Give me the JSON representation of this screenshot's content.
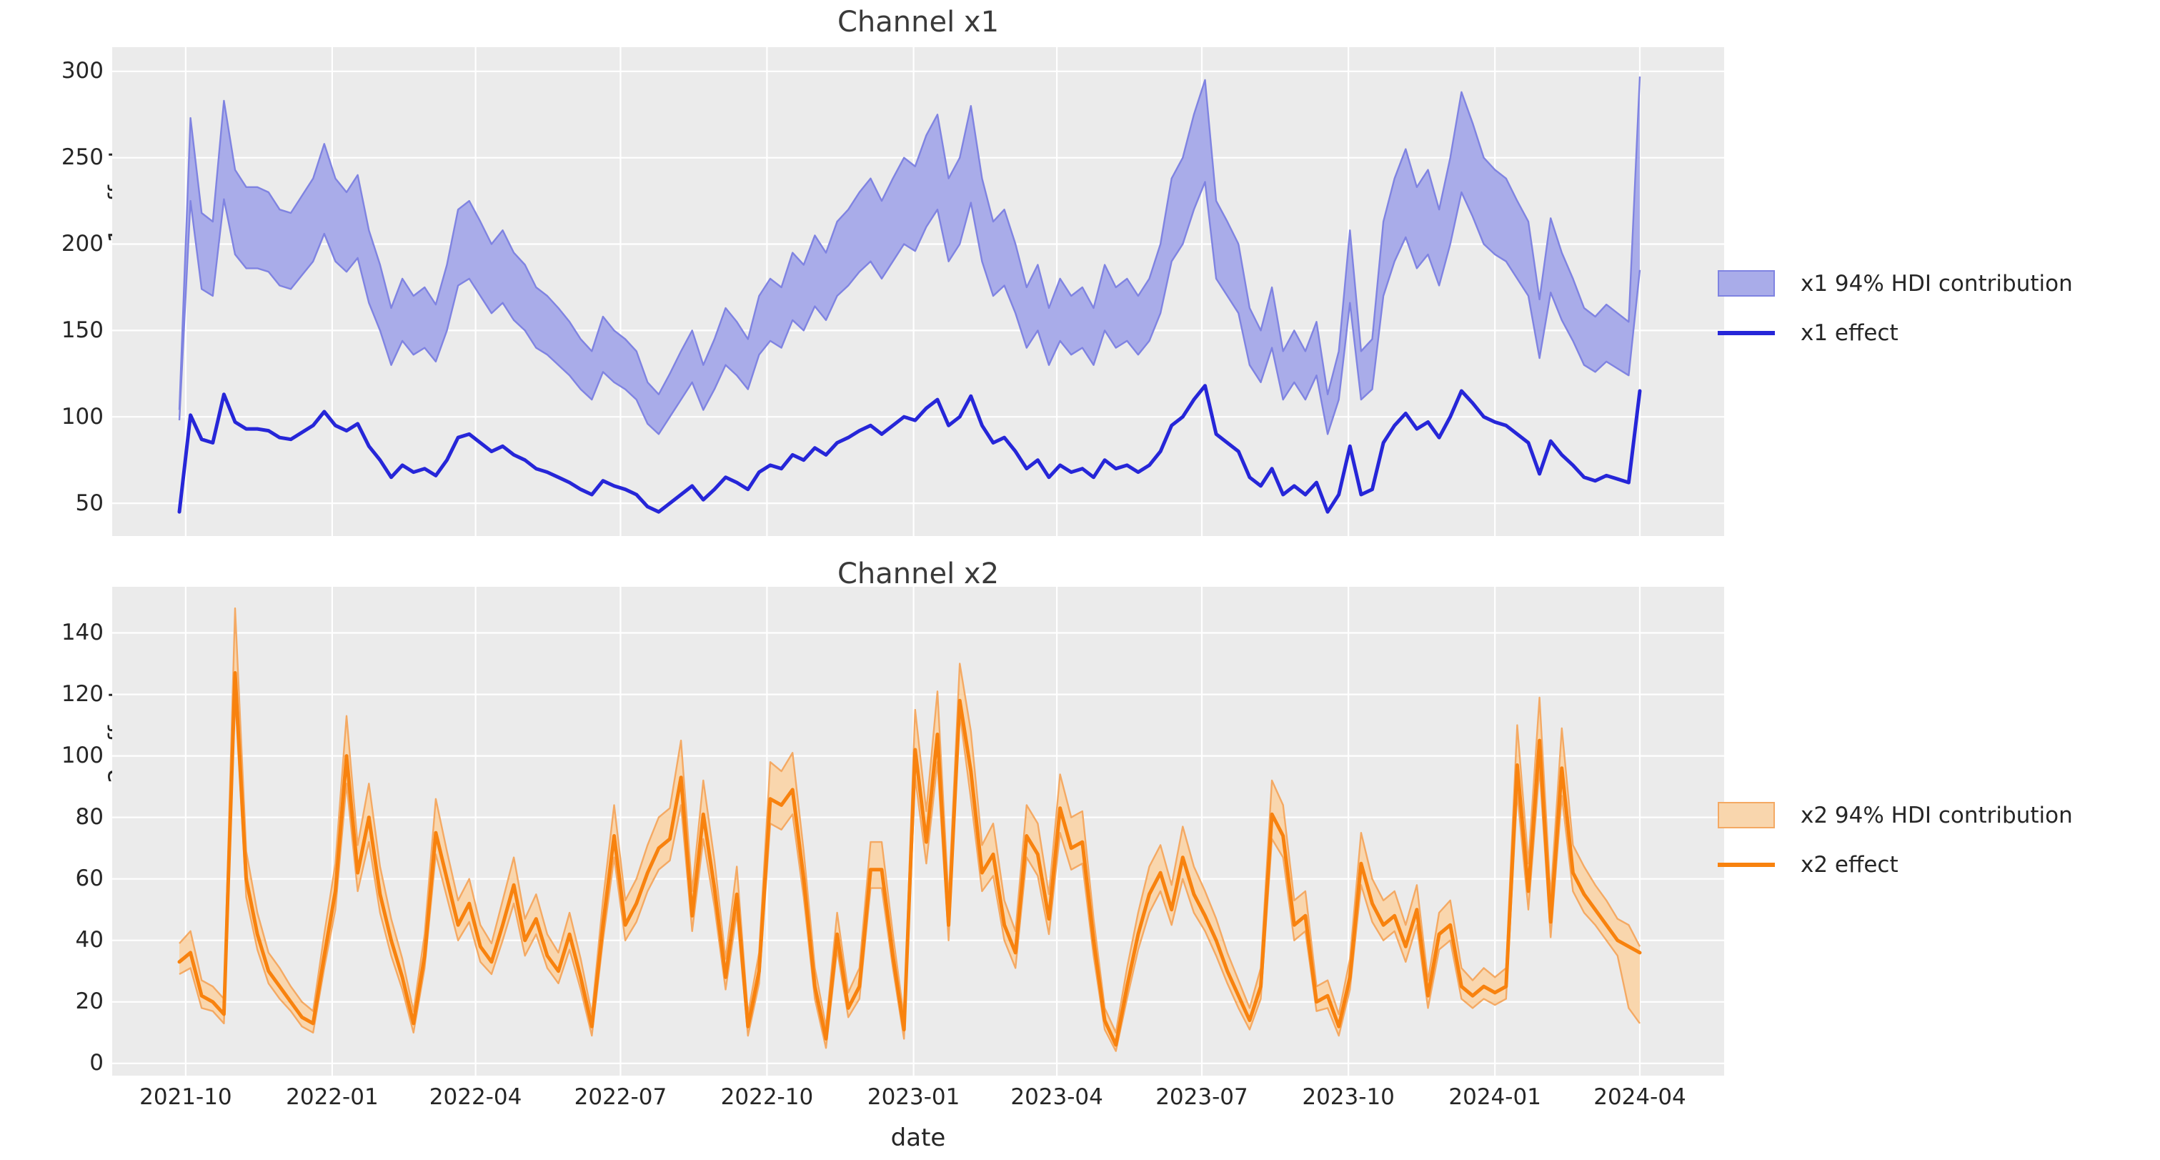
{
  "x_axis": {
    "label": "date",
    "start_date": "2021-09-27",
    "step_days": 7,
    "n_points": 132,
    "ticks": [
      "2021-10",
      "2022-01",
      "2022-04",
      "2022-07",
      "2022-10",
      "2023-01",
      "2023-04",
      "2023-07",
      "2023-10",
      "2024-01",
      "2024-04"
    ],
    "tick_weeks": [
      0.57,
      13.71,
      26.57,
      39.57,
      52.71,
      65.86,
      78.71,
      91.71,
      104.86,
      118.0,
      131.0
    ]
  },
  "chart_data": [
    {
      "type": "area",
      "title": "Channel x1",
      "ylabel": "x1_effect",
      "xlabel": "",
      "ylim": [
        31,
        314
      ],
      "yticks": [
        50,
        100,
        150,
        200,
        250,
        300
      ],
      "grid": true,
      "plot_bg": "#ebebeb",
      "grid_color": "#ffffff",
      "legend_position": "right",
      "legend": [
        {
          "label": "x1 94% HDI contribution",
          "swatch": "patch",
          "fill": "#a9ace9",
          "edge": "#7f83e1"
        },
        {
          "label": "x1 effect",
          "swatch": "line",
          "color": "#2626d8"
        }
      ],
      "series": [
        {
          "name": "x1 94% HDI contribution",
          "kind": "band",
          "fill": "#a9ace9",
          "edge": "#7f83e1",
          "lower": [
            98,
            225,
            174,
            170,
            226,
            194,
            186,
            186,
            184,
            176,
            174,
            182,
            190,
            206,
            190,
            184,
            192,
            166,
            150,
            130,
            144,
            136,
            140,
            132,
            150,
            176,
            180,
            170,
            160,
            166,
            156,
            150,
            140,
            136,
            130,
            124,
            116,
            110,
            126,
            120,
            116,
            110,
            96,
            90,
            100,
            110,
            120,
            104,
            116,
            130,
            124,
            116,
            136,
            144,
            140,
            156,
            150,
            164,
            156,
            170,
            176,
            184,
            190,
            180,
            190,
            200,
            196,
            210,
            220,
            190,
            200,
            224,
            190,
            170,
            176,
            160,
            140,
            150,
            130,
            144,
            136,
            140,
            130,
            150,
            140,
            144,
            136,
            144,
            160,
            190,
            200,
            220,
            236,
            180,
            170,
            160,
            130,
            120,
            140,
            110,
            120,
            110,
            124,
            90,
            110,
            166,
            110,
            116,
            170,
            190,
            204,
            186,
            194,
            176,
            200,
            230,
            216,
            200,
            194,
            190,
            180,
            170,
            134,
            172,
            156,
            144,
            130,
            126,
            132,
            128,
            124,
            185
          ],
          "upper": [
            104,
            273,
            218,
            213,
            283,
            243,
            233,
            233,
            230,
            220,
            218,
            228,
            238,
            258,
            238,
            230,
            240,
            208,
            188,
            163,
            180,
            170,
            175,
            165,
            188,
            220,
            225,
            213,
            200,
            208,
            195,
            188,
            175,
            170,
            163,
            155,
            145,
            138,
            158,
            150,
            145,
            138,
            120,
            113,
            125,
            138,
            150,
            130,
            145,
            163,
            155,
            145,
            170,
            180,
            175,
            195,
            188,
            205,
            195,
            213,
            220,
            230,
            238,
            225,
            238,
            250,
            245,
            263,
            275,
            238,
            250,
            280,
            238,
            213,
            220,
            200,
            175,
            188,
            163,
            180,
            170,
            175,
            163,
            188,
            175,
            180,
            170,
            180,
            200,
            238,
            250,
            275,
            295,
            225,
            213,
            200,
            163,
            150,
            175,
            138,
            150,
            138,
            155,
            113,
            138,
            208,
            138,
            145,
            213,
            238,
            255,
            233,
            243,
            220,
            250,
            288,
            270,
            250,
            243,
            238,
            225,
            213,
            168,
            215,
            195,
            180,
            163,
            158,
            165,
            160,
            155,
            297
          ]
        },
        {
          "name": "x1 effect",
          "kind": "line",
          "color": "#2626d8",
          "values": [
            45,
            101,
            87,
            85,
            113,
            97,
            93,
            93,
            92,
            88,
            87,
            91,
            95,
            103,
            95,
            92,
            96,
            83,
            75,
            65,
            72,
            68,
            70,
            66,
            75,
            88,
            90,
            85,
            80,
            83,
            78,
            75,
            70,
            68,
            65,
            62,
            58,
            55,
            63,
            60,
            58,
            55,
            48,
            45,
            50,
            55,
            60,
            52,
            58,
            65,
            62,
            58,
            68,
            72,
            70,
            78,
            75,
            82,
            78,
            85,
            88,
            92,
            95,
            90,
            95,
            100,
            98,
            105,
            110,
            95,
            100,
            112,
            95,
            85,
            88,
            80,
            70,
            75,
            65,
            72,
            68,
            70,
            65,
            75,
            70,
            72,
            68,
            72,
            80,
            95,
            100,
            110,
            118,
            90,
            85,
            80,
            65,
            60,
            70,
            55,
            60,
            55,
            62,
            45,
            55,
            83,
            55,
            58,
            85,
            95,
            102,
            93,
            97,
            88,
            100,
            115,
            108,
            100,
            97,
            95,
            90,
            85,
            67,
            86,
            78,
            72,
            65,
            63,
            66,
            64,
            62,
            115
          ]
        }
      ]
    },
    {
      "type": "area",
      "title": "Channel x2",
      "ylabel": "x2_effect",
      "xlabel": "date",
      "ylim": [
        -4,
        155
      ],
      "yticks": [
        0,
        20,
        40,
        60,
        80,
        100,
        120,
        140
      ],
      "grid": true,
      "plot_bg": "#ebebeb",
      "grid_color": "#ffffff",
      "legend_position": "right",
      "legend": [
        {
          "label": "x2 94% HDI contribution",
          "swatch": "patch",
          "fill": "#f9d6ad",
          "edge": "#f4a963"
        },
        {
          "label": "x2 effect",
          "swatch": "line",
          "color": "#f8820e"
        }
      ],
      "series": [
        {
          "name": "x2 94% HDI contribution",
          "kind": "band",
          "fill": "#f9d6ad",
          "edge": "#f4a963",
          "lower": [
            29,
            31,
            18,
            17,
            13,
            120,
            54,
            37,
            26,
            21,
            17,
            12,
            10,
            31,
            50,
            91,
            56,
            72,
            49,
            35,
            24,
            10,
            31,
            68,
            54,
            40,
            46,
            33,
            29,
            40,
            52,
            35,
            42,
            31,
            26,
            37,
            24,
            9,
            40,
            67,
            40,
            46,
            56,
            63,
            66,
            84,
            43,
            73,
            51,
            24,
            49,
            9,
            26,
            78,
            76,
            81,
            54,
            21,
            5,
            37,
            15,
            21,
            57,
            57,
            31,
            8,
            93,
            65,
            98,
            40,
            114,
            86,
            56,
            61,
            40,
            31,
            67,
            61,
            42,
            75,
            63,
            65,
            35,
            11,
            4,
            21,
            37,
            49,
            56,
            45,
            60,
            49,
            43,
            35,
            26,
            18,
            11,
            21,
            73,
            67,
            40,
            43,
            17,
            18,
            9,
            24,
            58,
            46,
            40,
            43,
            33,
            45,
            18,
            37,
            40,
            21,
            18,
            21,
            19,
            21,
            88,
            50,
            96,
            41,
            87,
            56,
            49,
            45,
            40,
            35,
            18,
            13
          ],
          "upper": [
            39,
            43,
            27,
            25,
            21,
            148,
            69,
            49,
            36,
            31,
            25,
            20,
            17,
            42,
            65,
            113,
            71,
            91,
            64,
            47,
            34,
            17,
            42,
            86,
            69,
            53,
            60,
            45,
            39,
            53,
            67,
            47,
            55,
            42,
            36,
            49,
            34,
            16,
            53,
            84,
            53,
            60,
            71,
            80,
            83,
            105,
            56,
            92,
            66,
            34,
            64,
            16,
            36,
            98,
            95,
            101,
            69,
            31,
            12,
            49,
            23,
            31,
            72,
            72,
            42,
            15,
            115,
            82,
            121,
            53,
            130,
            108,
            71,
            78,
            53,
            43,
            84,
            78,
            55,
            94,
            80,
            82,
            47,
            18,
            10,
            31,
            49,
            64,
            71,
            58,
            77,
            64,
            56,
            47,
            36,
            27,
            18,
            31,
            92,
            84,
            53,
            56,
            25,
            27,
            16,
            34,
            75,
            60,
            53,
            56,
            45,
            58,
            27,
            49,
            53,
            31,
            27,
            31,
            28,
            31,
            110,
            65,
            119,
            54,
            109,
            71,
            64,
            58,
            53,
            47,
            45,
            38
          ]
        },
        {
          "name": "x2 effect",
          "kind": "line",
          "color": "#f8820e",
          "values": [
            33,
            36,
            22,
            20,
            16,
            127,
            60,
            42,
            30,
            25,
            20,
            15,
            13,
            35,
            56,
            100,
            62,
            80,
            55,
            40,
            28,
            13,
            35,
            75,
            60,
            45,
            52,
            38,
            33,
            45,
            58,
            40,
            47,
            35,
            30,
            42,
            28,
            12,
            45,
            74,
            45,
            52,
            62,
            70,
            73,
            93,
            48,
            81,
            57,
            28,
            55,
            12,
            30,
            86,
            84,
            89,
            60,
            25,
            8,
            42,
            18,
            25,
            63,
            63,
            35,
            11,
            102,
            72,
            107,
            45,
            118,
            95,
            62,
            68,
            45,
            36,
            74,
            68,
            47,
            83,
            70,
            72,
            40,
            14,
            6,
            25,
            42,
            55,
            62,
            50,
            67,
            55,
            48,
            40,
            30,
            22,
            14,
            25,
            81,
            74,
            45,
            48,
            20,
            22,
            12,
            28,
            65,
            52,
            45,
            48,
            38,
            50,
            22,
            42,
            45,
            25,
            22,
            25,
            23,
            25,
            97,
            56,
            105,
            46,
            96,
            62,
            55,
            50,
            45,
            40,
            38,
            36
          ]
        }
      ]
    }
  ]
}
